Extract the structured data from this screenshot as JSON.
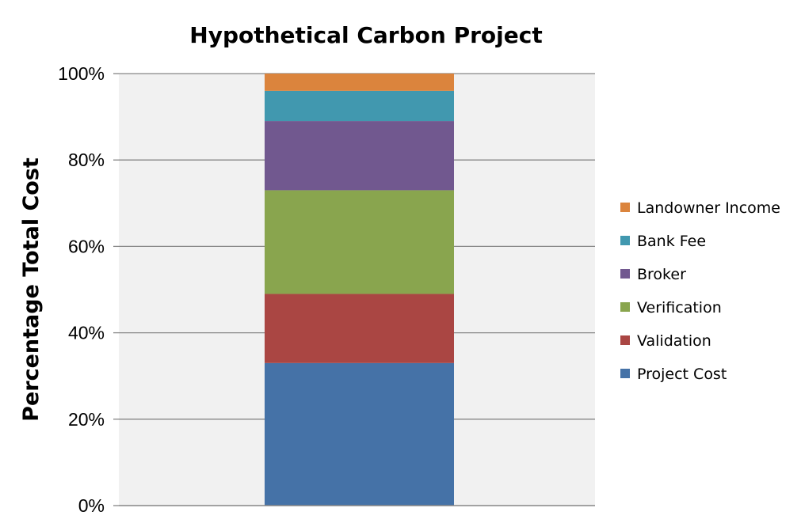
{
  "chart_data": {
    "type": "bar",
    "stacked": true,
    "percent": true,
    "title": "Hypothetical Carbon Project",
    "xlabel": "",
    "ylabel": "Percentage Total Cost",
    "ylim": [
      0,
      100
    ],
    "yticks": [
      "0%",
      "20%",
      "40%",
      "60%",
      "80%",
      "100%"
    ],
    "yticks_values": [
      0,
      20,
      40,
      60,
      80,
      100
    ],
    "categories": [
      ""
    ],
    "grid": true,
    "legend_position": "right",
    "series": [
      {
        "name": "Project Cost",
        "values": [
          33
        ],
        "color": "#4572A7"
      },
      {
        "name": "Validation",
        "values": [
          16
        ],
        "color": "#AA4643"
      },
      {
        "name": "Verification",
        "values": [
          24
        ],
        "color": "#89A54E"
      },
      {
        "name": "Broker",
        "values": [
          16
        ],
        "color": "#71588F"
      },
      {
        "name": "Bank Fee",
        "values": [
          7
        ],
        "color": "#4198AF"
      },
      {
        "name": "Landowner Income",
        "values": [
          4
        ],
        "color": "#DB843D"
      }
    ]
  }
}
